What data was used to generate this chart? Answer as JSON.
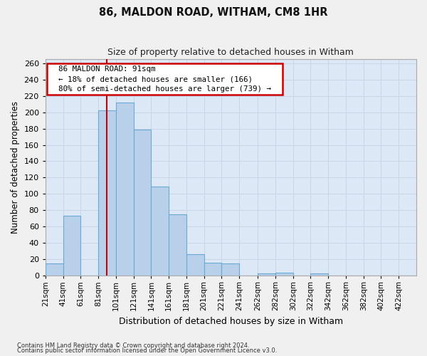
{
  "title": "86, MALDON ROAD, WITHAM, CM8 1HR",
  "subtitle": "Size of property relative to detached houses in Witham",
  "xlabel": "Distribution of detached houses by size in Witham",
  "ylabel": "Number of detached properties",
  "footer_line1": "Contains HM Land Registry data © Crown copyright and database right 2024.",
  "footer_line2": "Contains public sector information licensed under the Open Government Licence v3.0.",
  "annotation_title": "86 MALDON ROAD: 91sqm",
  "annotation_line1": "← 18% of detached houses are smaller (166)",
  "annotation_line2": "80% of semi-detached houses are larger (739) →",
  "bar_left_edges": [
    21,
    41,
    61,
    81,
    101,
    121,
    141,
    161,
    181,
    201,
    221,
    241,
    262,
    282,
    302,
    322,
    342,
    362,
    382,
    402,
    422
  ],
  "bar_values": [
    15,
    73,
    0,
    202,
    212,
    179,
    109,
    75,
    26,
    16,
    15,
    0,
    3,
    4,
    0,
    3,
    0,
    0,
    0,
    0,
    0
  ],
  "tick_labels": [
    "21sqm",
    "41sqm",
    "61sqm",
    "81sqm",
    "101sqm",
    "121sqm",
    "141sqm",
    "161sqm",
    "181sqm",
    "201sqm",
    "221sqm",
    "241sqm",
    "262sqm",
    "282sqm",
    "302sqm",
    "322sqm",
    "342sqm",
    "362sqm",
    "382sqm",
    "402sqm",
    "422sqm"
  ],
  "bar_color": "#b8d0ea",
  "bar_edge_color": "#6aaad4",
  "vline_x": 91,
  "vline_color": "#cc0000",
  "annotation_box_facecolor": "#ffffff",
  "annotation_box_edgecolor": "#cc0000",
  "ylim": [
    0,
    265
  ],
  "yticks": [
    0,
    20,
    40,
    60,
    80,
    100,
    120,
    140,
    160,
    180,
    200,
    220,
    240,
    260
  ],
  "grid_color": "#c8d4e8",
  "bg_color": "#dce8f5",
  "fig_bg_color": "#f0f0f0",
  "bin_width": 20
}
